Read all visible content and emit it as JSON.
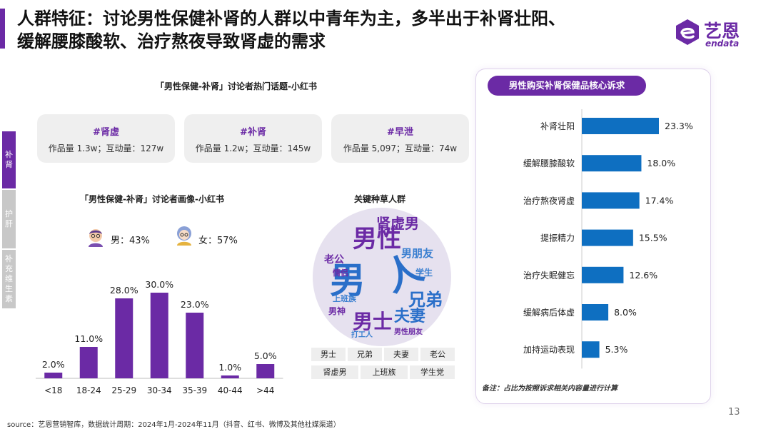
{
  "header": {
    "title_line1": "人群特征：讨论男性保健补肾的人群以中青年为主，多半出于补肾壮阳、",
    "title_line2": "缓解腰膝酸软、治疗熬夜导致肾虚的需求",
    "logo_cn": "艺恩",
    "logo_en": "endata"
  },
  "side_tabs": [
    {
      "label": "补肾",
      "active": true
    },
    {
      "label": "护肝",
      "active": false
    },
    {
      "label": "补充维生素",
      "active": false
    }
  ],
  "topics": {
    "heading": "「男性保健-补肾」讨论者热门话题-小红书",
    "cards": [
      {
        "tag": "#肾虚",
        "stats": "作品量 1.3w；互动量：127w"
      },
      {
        "tag": "#补肾",
        "stats": "作品量 1.2w；互动量：145w"
      },
      {
        "tag": "#早泄",
        "stats": "作品量 5,097；互动量：74w"
      }
    ]
  },
  "portrait": {
    "heading": "「男性保健-补肾」讨论者画像-小红书",
    "male": "男：43%",
    "female": "女：57%"
  },
  "keywords": {
    "heading": "关键种草人群",
    "pills": [
      "男士",
      "兄弟",
      "夫妻",
      "老公",
      "肾虚男",
      "上班族",
      "学生党"
    ]
  },
  "needs_panel": {
    "title": "男性购买补肾保健品核心诉求",
    "note": "备注：占比为按照诉求相关内容量进行计算"
  },
  "footer": {
    "source": "source：艺恩营销智库，数据统计周期：2024年1月-2024年11月（抖音、红书、微博及其他社媒渠道）",
    "page": "13"
  },
  "colors": {
    "purple": "#6b2aa5",
    "blue": "#0e6fc1",
    "grey": "#efefef"
  },
  "chart_data": [
    {
      "type": "bar",
      "categories": [
        "<18",
        "18-24",
        "25-29",
        "30-34",
        "35-39",
        "40-44",
        ">44"
      ],
      "values": [
        2.0,
        11.0,
        28.0,
        30.0,
        23.0,
        1.0,
        5.0
      ],
      "value_labels": [
        "2.0%",
        "11.0%",
        "28.0%",
        "30.0%",
        "23.0%",
        "1.0%",
        "5.0%"
      ],
      "ylim": [
        0,
        30
      ],
      "color": "#6b2aa5"
    },
    {
      "type": "bar",
      "orientation": "horizontal",
      "title": "男性购买补肾保健品核心诉求",
      "categories": [
        "补肾壮阳",
        "缓解腰膝酸软",
        "治疗熬夜肾虚",
        "提振精力",
        "治疗失眠健忘",
        "缓解病后体虚",
        "加持运动表现"
      ],
      "values": [
        23.3,
        18.0,
        17.4,
        15.5,
        12.6,
        8.0,
        5.3
      ],
      "value_labels": [
        "23.3%",
        "18.0%",
        "17.4%",
        "15.5%",
        "12.6%",
        "8.0%",
        "5.3%"
      ],
      "xlim": [
        0,
        23.3
      ],
      "color": "#0e6fc1"
    }
  ]
}
